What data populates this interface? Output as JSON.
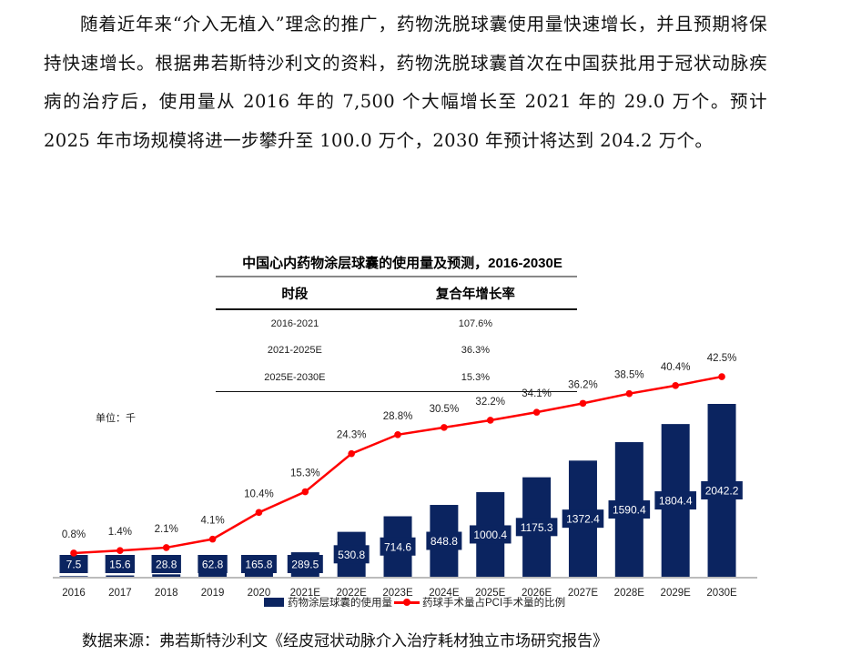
{
  "paragraph": "随着近年来“介入无植入”理念的推广，药物洗脱球囊使用量快速增长，并且预期将保持快速增长。根据弗若斯特沙利文的资料，药物洗脱球囊首次在中国获批用于冠状动脉疾病的治疗后，使用量从 2016 年的 7,500 个大幅增长至 2021 年的 29.0 万个。预计 2025 年市场规模将进一步攀升至 100.0 万个，2030 年预计将达到 204.2 万个。",
  "cagr_table": {
    "headers": [
      "时段",
      "复合年增长率"
    ],
    "rows": [
      [
        "2016-2021",
        "107.6%"
      ],
      [
        "2021-2025E",
        "36.3%"
      ],
      [
        "2025E-2030E",
        "15.3%"
      ]
    ]
  },
  "chart_data": {
    "type": "bar+line",
    "title": "中国心内药物涂层球囊的使用量及预测，2016-2030E",
    "unit_label": "单位：千",
    "categories": [
      "2016",
      "2017",
      "2018",
      "2019",
      "2020",
      "2021E",
      "2022E",
      "2023E",
      "2024E",
      "2025E",
      "2026E",
      "2027E",
      "2028E",
      "2029E",
      "2030E"
    ],
    "series": [
      {
        "name": "药物涂层球囊的使用量",
        "type": "bar",
        "color": "#0b2460",
        "values": [
          7.5,
          15.6,
          28.8,
          62.8,
          165.8,
          289.5,
          530.8,
          714.6,
          848.8,
          1000.4,
          1175.3,
          1372.4,
          1590.4,
          1804.4,
          2042.2
        ],
        "labels": [
          "7.5",
          "15.6",
          "28.8",
          "62.8",
          "165.8",
          "289.5",
          "530.8",
          "714.6",
          "848.8",
          "1000.4",
          "1175.3",
          "1372.4",
          "1590.4",
          "1804.4",
          "2042.2"
        ]
      },
      {
        "name": "药球手术量占PCI手术量的比例",
        "type": "line",
        "color": "#ff0000",
        "values": [
          0.8,
          1.4,
          2.1,
          4.1,
          10.4,
          15.3,
          24.3,
          28.8,
          30.5,
          32.2,
          34.1,
          36.2,
          38.5,
          40.4,
          42.5
        ],
        "labels": [
          "0.8%",
          "1.4%",
          "2.1%",
          "4.1%",
          "10.4%",
          "15.3%",
          "24.3%",
          "28.8%",
          "30.5%",
          "32.2%",
          "34.1%",
          "36.2%",
          "38.5%",
          "40.4%",
          "42.5%"
        ]
      }
    ],
    "legend": "bottom",
    "grid": false
  },
  "source": "数据来源：弗若斯特沙利文《经皮冠状动脉介入治疗耗材独立市场研究报告》"
}
